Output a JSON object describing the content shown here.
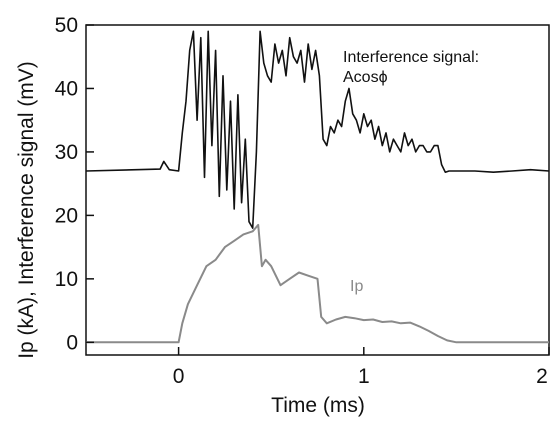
{
  "chart_data": {
    "type": "line",
    "xlabel": "Time (ms)",
    "ylabel": "Ip (kA), Interference signal (mV)",
    "xlim": [
      -0.5,
      2.0
    ],
    "ylim": [
      -2,
      50
    ],
    "x_ticks": [
      0,
      1,
      2
    ],
    "x_tick_labels": [
      "0",
      "1",
      "2"
    ],
    "y_ticks": [
      0,
      10,
      20,
      30,
      40,
      50
    ],
    "y_tick_labels": [
      "0",
      "10",
      "20",
      "30",
      "40",
      "50"
    ],
    "grid": false,
    "legend": "none",
    "annotations": [
      {
        "text": "Interference signal:",
        "series": "Interference signal"
      },
      {
        "text": "Acosϕ",
        "series": "Interference signal"
      },
      {
        "text": "Ip",
        "series": "Ip"
      }
    ],
    "series": [
      {
        "name": "Interference signal",
        "color": "#111111",
        "x": [
          -0.5,
          -0.1,
          -0.08,
          -0.05,
          0.0,
          0.02,
          0.04,
          0.06,
          0.08,
          0.1,
          0.12,
          0.14,
          0.16,
          0.18,
          0.2,
          0.22,
          0.24,
          0.26,
          0.28,
          0.3,
          0.32,
          0.34,
          0.36,
          0.38,
          0.4,
          0.42,
          0.44,
          0.46,
          0.48,
          0.5,
          0.52,
          0.54,
          0.56,
          0.58,
          0.6,
          0.62,
          0.64,
          0.66,
          0.68,
          0.7,
          0.72,
          0.74,
          0.76,
          0.78,
          0.8,
          0.82,
          0.84,
          0.86,
          0.88,
          0.9,
          0.92,
          0.94,
          0.96,
          0.98,
          1.0,
          1.02,
          1.04,
          1.06,
          1.08,
          1.1,
          1.12,
          1.14,
          1.16,
          1.18,
          1.2,
          1.22,
          1.24,
          1.26,
          1.28,
          1.3,
          1.32,
          1.34,
          1.36,
          1.38,
          1.4,
          1.42,
          1.44,
          1.46,
          1.5,
          1.6,
          1.7,
          1.8,
          1.9,
          2.0
        ],
        "y": [
          27,
          27.3,
          28.5,
          27.2,
          27,
          33,
          38,
          46,
          49,
          35,
          48,
          26,
          49,
          31,
          46,
          23,
          42,
          24,
          38,
          21,
          39,
          22,
          32,
          19,
          18,
          30,
          49,
          44,
          42,
          41,
          47,
          44,
          46,
          42,
          48,
          45,
          44,
          46,
          41,
          47,
          43,
          46,
          42,
          32,
          31,
          34,
          33,
          35,
          34,
          38,
          40,
          36,
          35,
          33,
          36,
          34,
          35,
          32,
          34,
          31,
          33,
          30,
          32,
          31,
          30,
          33,
          31,
          32,
          30,
          31,
          31,
          30,
          30,
          31,
          31,
          28,
          26.8,
          27,
          27,
          27,
          26.8,
          27,
          27.2,
          27
        ]
      },
      {
        "name": "Ip",
        "color": "#8a8a8a",
        "x": [
          -0.5,
          -0.1,
          0.0,
          0.02,
          0.05,
          0.1,
          0.15,
          0.2,
          0.25,
          0.3,
          0.35,
          0.4,
          0.43,
          0.45,
          0.47,
          0.5,
          0.55,
          0.6,
          0.65,
          0.7,
          0.75,
          0.77,
          0.8,
          0.85,
          0.9,
          0.95,
          1.0,
          1.05,
          1.1,
          1.15,
          1.2,
          1.25,
          1.3,
          1.35,
          1.4,
          1.45,
          1.5,
          1.7,
          1.9,
          2.0
        ],
        "y": [
          0,
          0,
          0,
          3,
          6,
          9,
          12,
          13,
          15,
          16,
          17,
          17.5,
          18.5,
          12,
          13,
          12,
          9,
          10,
          11,
          10.5,
          10,
          4,
          3,
          3.6,
          4,
          3.8,
          3.5,
          3.6,
          3.2,
          3.3,
          3.0,
          3.1,
          2.5,
          1.8,
          1.0,
          0.3,
          0,
          0,
          0,
          0
        ]
      }
    ]
  }
}
